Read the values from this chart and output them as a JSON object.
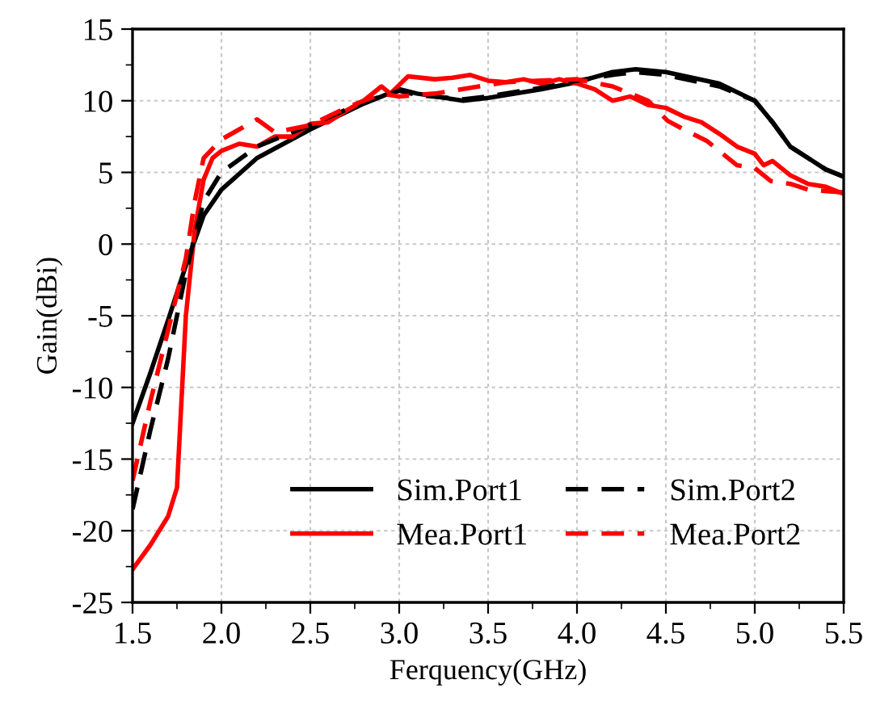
{
  "chart_data": {
    "type": "line",
    "xlabel": "Ferquency(GHz)",
    "ylabel": "Gain(dBi)",
    "xlim": [
      1.5,
      5.5
    ],
    "xticks": [
      {
        "value": 1.5,
        "label": "1.5"
      },
      {
        "value": 2.0,
        "label": "2.0"
      },
      {
        "value": 2.5,
        "label": "2.5"
      },
      {
        "value": 3.0,
        "label": "3.0"
      },
      {
        "value": 3.5,
        "label": "3.5"
      },
      {
        "value": 4.0,
        "label": "4.0"
      },
      {
        "value": 4.5,
        "label": "4.5"
      },
      {
        "value": 5.0,
        "label": "5.0"
      },
      {
        "value": 5.5,
        "label": "5.5"
      }
    ],
    "ylim": [
      -25,
      15
    ],
    "yticks": [
      -25,
      -20,
      -15,
      -10,
      -5,
      0,
      5,
      10,
      15
    ],
    "grid": true,
    "legend": "bottom right",
    "series": [
      {
        "name": "Sim.Port1",
        "color": "#000000",
        "line_style": "solid",
        "x": [
          1.5,
          1.6,
          1.7,
          1.8,
          1.9,
          2.0,
          2.2,
          2.5,
          2.8,
          3.0,
          3.1,
          3.36,
          3.5,
          3.8,
          4.0,
          4.2,
          4.33,
          4.5,
          4.8,
          5.0,
          5.1,
          5.2,
          5.3,
          5.4,
          5.5
        ],
        "values": [
          -12.5,
          -9,
          -5.3,
          -1.5,
          2.0,
          3.8,
          6.0,
          8.0,
          9.8,
          10.8,
          10.5,
          10.0,
          10.2,
          10.8,
          11.3,
          12.0,
          12.2,
          12.0,
          11.2,
          10.0,
          8.5,
          6.8,
          6.0,
          5.2,
          4.7
        ]
      },
      {
        "name": "Mea.Port1",
        "color": "#ff0000",
        "line_style": "solid",
        "x": [
          1.5,
          1.6,
          1.7,
          1.75,
          1.8,
          1.85,
          1.9,
          1.95,
          2.0,
          2.1,
          2.2,
          2.3,
          2.4,
          2.5,
          2.6,
          2.7,
          2.8,
          2.9,
          2.95,
          3.05,
          3.2,
          3.3,
          3.4,
          3.5,
          3.6,
          3.7,
          3.8,
          3.9,
          4.0,
          4.1,
          4.2,
          4.3,
          4.4,
          4.5,
          4.6,
          4.7,
          4.8,
          4.9,
          5.0,
          5.05,
          5.1,
          5.2,
          5.3,
          5.4,
          5.5
        ],
        "values": [
          -22.7,
          -21,
          -19,
          -17,
          -5,
          1,
          4.5,
          6,
          6.5,
          7,
          6.8,
          7.5,
          7.5,
          8.4,
          8.5,
          9.3,
          10,
          11,
          10.5,
          11.7,
          11.5,
          11.6,
          11.8,
          11.4,
          11.3,
          11.5,
          11.2,
          11.5,
          11.2,
          10.8,
          10,
          10.3,
          9.7,
          9.5,
          8.9,
          8.5,
          7.7,
          6.8,
          6.3,
          5.5,
          5.8,
          4.8,
          4.2,
          4.0,
          3.5
        ]
      },
      {
        "name": "Sim.Port2",
        "color": "#000000",
        "line_style": "dashed",
        "x": [
          1.5,
          1.6,
          1.7,
          1.8,
          1.9,
          2.0,
          2.2,
          2.5,
          2.8,
          3.0,
          3.1,
          3.36,
          3.5,
          3.8,
          4.0,
          4.2,
          4.33,
          4.5,
          4.8,
          5.0,
          5.1,
          5.2,
          5.3,
          5.4,
          5.5
        ],
        "values": [
          -18.5,
          -13,
          -8,
          -2,
          3,
          5,
          6.8,
          8.3,
          9.9,
          10.7,
          10.4,
          10.1,
          10.3,
          10.9,
          11.4,
          11.8,
          12.0,
          11.8,
          11.0,
          10.0,
          8.5,
          6.8,
          6.0,
          5.2,
          4.7
        ]
      },
      {
        "name": "Mea.Port2",
        "color": "#ff0000",
        "line_style": "dashed",
        "x": [
          1.5,
          1.6,
          1.7,
          1.8,
          1.85,
          1.9,
          2.0,
          2.1,
          2.2,
          2.3,
          2.5,
          2.7,
          2.9,
          3.0,
          3.2,
          3.4,
          3.6,
          3.8,
          4.0,
          4.2,
          4.4,
          4.51,
          4.6,
          4.73,
          4.9,
          5.0,
          5.09,
          5.2,
          5.3,
          5.5
        ],
        "values": [
          -16.5,
          -11,
          -6,
          -1,
          3,
          6,
          7.3,
          8,
          8.7,
          7.8,
          8.3,
          9.5,
          10.5,
          10.3,
          10.5,
          10.9,
          11.3,
          11.4,
          11.5,
          11,
          10,
          8.6,
          8.0,
          7.2,
          5.5,
          5.3,
          4.4,
          4.2,
          3.8,
          3.6
        ]
      }
    ]
  }
}
